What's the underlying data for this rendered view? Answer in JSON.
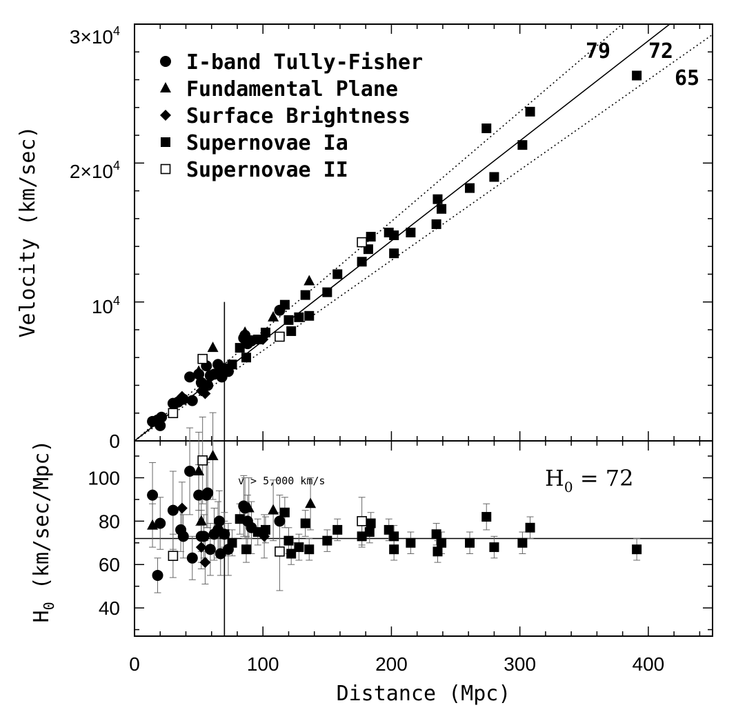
{
  "chart_data": [
    {
      "type": "scatter",
      "panel": "top",
      "title": "",
      "xlabel": "",
      "ylabel": "Velocity (km/sec)",
      "xlim": [
        0,
        450
      ],
      "ylim": [
        0,
        30000
      ],
      "y_tick_labels": [
        "0",
        "10^4",
        "2×10^4",
        "3×10^4"
      ],
      "grid": false,
      "legend_position": "top-left",
      "legend": [
        {
          "marker": "filled-circle",
          "label": "I-band Tully-Fisher"
        },
        {
          "marker": "filled-triangle",
          "label": "Fundamental Plane"
        },
        {
          "marker": "filled-diamond",
          "label": "Surface Brightness"
        },
        {
          "marker": "filled-square",
          "label": "Supernovae Ia"
        },
        {
          "marker": "open-square",
          "label": "Supernovae II"
        }
      ],
      "reference_lines": [
        {
          "H0": 79,
          "label": "79",
          "style": "dotted"
        },
        {
          "H0": 72,
          "label": "72",
          "style": "solid"
        },
        {
          "H0": 65,
          "label": "65",
          "style": "dotted"
        }
      ],
      "vertical_line_x": 70,
      "series": [
        {
          "name": "I-band Tully-Fisher",
          "marker": "filled-circle",
          "points": [
            [
              14,
              1400
            ],
            [
              18,
              1500
            ],
            [
              20,
              1100
            ],
            [
              21,
              1700
            ],
            [
              30,
              2700
            ],
            [
              34,
              2800
            ],
            [
              38,
              3000
            ],
            [
              43,
              4600
            ],
            [
              45,
              2900
            ],
            [
              50,
              4800
            ],
            [
              52,
              4200
            ],
            [
              54,
              4000
            ],
            [
              56,
              5400
            ],
            [
              57,
              4000
            ],
            [
              59,
              4700
            ],
            [
              62,
              4800
            ],
            [
              65,
              5500
            ],
            [
              66,
              5000
            ],
            [
              68,
              4600
            ],
            [
              70,
              5200
            ],
            [
              73,
              5000
            ],
            [
              85,
              7400
            ],
            [
              86,
              7600
            ],
            [
              88,
              7000
            ],
            [
              91,
              7200
            ],
            [
              113,
              9400
            ]
          ]
        },
        {
          "name": "Fundamental Plane",
          "marker": "filled-triangle",
          "points": [
            [
              50,
              5000
            ],
            [
              61,
              6700
            ],
            [
              86,
              7800
            ],
            [
              108,
              8900
            ],
            [
              136,
              11500
            ]
          ]
        },
        {
          "name": "Surface Brightness",
          "marker": "filled-diamond",
          "points": [
            [
              37,
              3200
            ],
            [
              52,
              3600
            ],
            [
              55,
              3400
            ],
            [
              100,
              7300
            ]
          ]
        },
        {
          "name": "Supernovae Ia",
          "marker": "filled-square",
          "points": [
            [
              70,
              5200
            ],
            [
              76,
              5500
            ],
            [
              82,
              6700
            ],
            [
              87,
              6000
            ],
            [
              96,
              7300
            ],
            [
              102,
              7800
            ],
            [
              117,
              9800
            ],
            [
              120,
              8700
            ],
            [
              122,
              7900
            ],
            [
              128,
              8900
            ],
            [
              133,
              10500
            ],
            [
              136,
              9000
            ],
            [
              150,
              10700
            ],
            [
              158,
              12000
            ],
            [
              177,
              12900
            ],
            [
              182,
              13800
            ],
            [
              184,
              14700
            ],
            [
              198,
              15000
            ],
            [
              202,
              13500
            ],
            [
              202,
              14800
            ],
            [
              215,
              15000
            ],
            [
              235,
              15600
            ],
            [
              236,
              17400
            ],
            [
              239,
              16700
            ],
            [
              261,
              18200
            ],
            [
              274,
              22500
            ],
            [
              280,
              19000
            ],
            [
              302,
              21300
            ],
            [
              308,
              23700
            ],
            [
              391,
              26300
            ]
          ]
        },
        {
          "name": "Supernovae II",
          "marker": "open-square",
          "points": [
            [
              30,
              2000
            ],
            [
              53,
              5900
            ],
            [
              113,
              7500
            ],
            [
              177,
              14300
            ]
          ]
        }
      ]
    },
    {
      "type": "scatter",
      "panel": "bottom",
      "title": "",
      "xlabel": "Distance (Mpc)",
      "ylabel": "H0 (km/sec/Mpc)",
      "xlim": [
        0,
        450
      ],
      "ylim": [
        27,
        117
      ],
      "x_ticks": [
        0,
        100,
        200,
        300,
        400
      ],
      "y_ticks": [
        40,
        60,
        80,
        100
      ],
      "grid": false,
      "horizontal_line_y": 72,
      "vertical_line_x": 70,
      "annotation": "v > 5,000 km/s",
      "h0_label": "H0 = 72",
      "series": [
        {
          "name": "I-band Tully-Fisher",
          "marker": "filled-circle",
          "points": [
            [
              14,
              92,
              15
            ],
            [
              18,
              55,
              8
            ],
            [
              20,
              79,
              12
            ],
            [
              30,
              85,
              18
            ],
            [
              36,
              76,
              10
            ],
            [
              38,
              73,
              10
            ],
            [
              43,
              103,
              20
            ],
            [
              45,
              63,
              10
            ],
            [
              50,
              92,
              14
            ],
            [
              52,
              73,
              12
            ],
            [
              54,
              73,
              10
            ],
            [
              56,
              92,
              15
            ],
            [
              57,
              93,
              16
            ],
            [
              59,
              67,
              12
            ],
            [
              62,
              74,
              12
            ],
            [
              65,
              76,
              13
            ],
            [
              66,
              80,
              14
            ],
            [
              67,
              65,
              10
            ],
            [
              70,
              74,
              10
            ],
            [
              73,
              67,
              12
            ],
            [
              85,
              87,
              14
            ],
            [
              86,
              86,
              14
            ],
            [
              88,
              80,
              12
            ],
            [
              91,
              77,
              12
            ],
            [
              113,
              80,
              12
            ]
          ]
        },
        {
          "name": "Fundamental Plane",
          "marker": "filled-triangle",
          "points": [
            [
              14,
              78,
              10
            ],
            [
              50,
              103,
              18
            ],
            [
              52,
              80,
              14
            ],
            [
              61,
              110,
              20
            ],
            [
              89,
              86,
              14
            ],
            [
              108,
              85,
              14
            ],
            [
              137,
              88,
              12
            ]
          ]
        },
        {
          "name": "Surface Brightness",
          "marker": "filled-diamond",
          "points": [
            [
              37,
              86,
              12
            ],
            [
              52,
              68,
              10
            ],
            [
              55,
              61,
              10
            ],
            [
              101,
              73,
              10
            ]
          ]
        },
        {
          "name": "Supernovae Ia",
          "marker": "filled-square",
          "points": [
            [
              70,
              74,
              6
            ],
            [
              76,
              70,
              6
            ],
            [
              82,
              81,
              7
            ],
            [
              87,
              67,
              6
            ],
            [
              96,
              75,
              6
            ],
            [
              102,
              76,
              6
            ],
            [
              117,
              84,
              7
            ],
            [
              120,
              71,
              6
            ],
            [
              122,
              65,
              5
            ],
            [
              128,
              68,
              6
            ],
            [
              133,
              79,
              6
            ],
            [
              136,
              67,
              5
            ],
            [
              150,
              71,
              5
            ],
            [
              158,
              76,
              5
            ],
            [
              177,
              73,
              5
            ],
            [
              183,
              75,
              5
            ],
            [
              184,
              79,
              5
            ],
            [
              198,
              76,
              5
            ],
            [
              202,
              67,
              5
            ],
            [
              202,
              73,
              5
            ],
            [
              215,
              70,
              5
            ],
            [
              235,
              74,
              5
            ],
            [
              236,
              66,
              5
            ],
            [
              239,
              70,
              5
            ],
            [
              261,
              70,
              5
            ],
            [
              274,
              82,
              6
            ],
            [
              280,
              68,
              5
            ],
            [
              302,
              70,
              5
            ],
            [
              308,
              77,
              5
            ],
            [
              391,
              67,
              5
            ]
          ]
        },
        {
          "name": "Supernovae II",
          "marker": "open-square",
          "points": [
            [
              30,
              64,
              10
            ],
            [
              53,
              108,
              20
            ],
            [
              113,
              66,
              18
            ],
            [
              177,
              80,
              11
            ]
          ]
        }
      ]
    }
  ]
}
